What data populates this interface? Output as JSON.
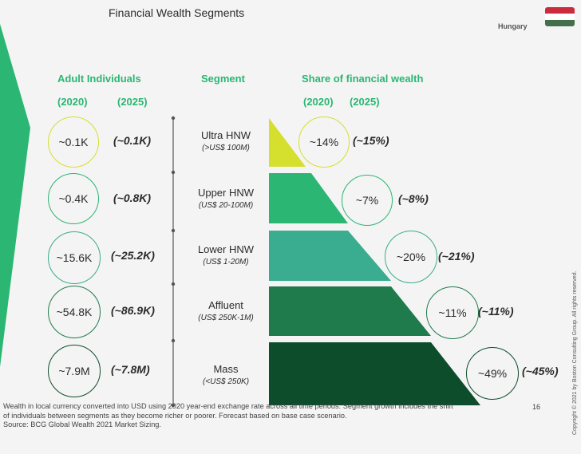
{
  "title": "Financial Wealth Segments",
  "country": "Hungary",
  "headers": {
    "adult_individuals": "Adult Individuals",
    "segment": "Segment",
    "share": "Share of financial wealth",
    "year_a": "(2020)",
    "year_b": "(2025)"
  },
  "rows": [
    {
      "name": "Ultra HNW",
      "range": "(>US$ 100M)",
      "ind_2020": "~0.1K",
      "ind_2025": "(~0.1K)",
      "share_2020": "~14%",
      "share_2025": "(~15%)",
      "color": "#d5df2e"
    },
    {
      "name": "Upper HNW",
      "range": "(US$ 20-100M)",
      "ind_2020": "~0.4K",
      "ind_2025": "(~0.8K)",
      "share_2020": "~7%",
      "share_2025": "(~8%)",
      "color": "#2bb673"
    },
    {
      "name": "Lower HNW",
      "range": "(US$ 1-20M)",
      "ind_2020": "~15.6K",
      "ind_2025": "(~25.2K)",
      "share_2020": "~20%",
      "share_2025": "(~21%)",
      "color": "#3aac8f"
    },
    {
      "name": "Affluent",
      "range": "(US$ 250K-1M)",
      "ind_2020": "~54.8K",
      "ind_2025": "(~86.9K)",
      "share_2020": "~11%",
      "share_2025": "(~11%)",
      "color": "#1f7a4c"
    },
    {
      "name": "Mass",
      "range": "(<US$ 250K)",
      "ind_2020": "~7.9M",
      "ind_2025": "(~7.8M)",
      "share_2020": "~49%",
      "share_2025": "(~45%)",
      "color": "#0e4d2c"
    }
  ],
  "footer": {
    "line1": "Wealth in local currency converted into USD using 2020 year-end exchange rate across all time periods. Segment growth includes the shift",
    "line2": "of individuals between segments as they become richer or poorer. Forecast based on base case scenario.",
    "line3": "Source: BCG Global Wealth 2021 Market Sizing."
  },
  "page_number": "16",
  "copyright": "Copyright © 2021 by Boston Consulting Group. All rights reserved.",
  "accent_color": "#2bb673"
}
